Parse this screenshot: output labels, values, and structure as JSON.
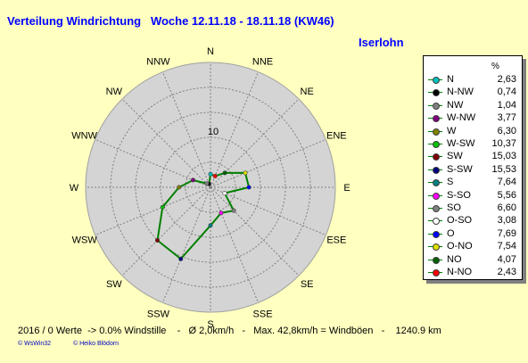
{
  "header": {
    "title": "Verteilung Windrichtung   Woche 12.11.18 - 18.11.18 (KW46)",
    "location": "Iserlohn"
  },
  "chart_data": {
    "type": "radar",
    "directions": [
      "N",
      "NNE",
      "NE",
      "ENE",
      "E",
      "ESE",
      "SE",
      "SSE",
      "S",
      "SSW",
      "SW",
      "WSW",
      "W",
      "WNW",
      "NW",
      "NNW"
    ],
    "ring_label": "10",
    "rmax": 25,
    "ring_step": 5,
    "series": [
      {
        "label": "N",
        "value": 2.63,
        "color": "#00c0c0"
      },
      {
        "label": "N-NW",
        "value": 0.74,
        "color": "#000000"
      },
      {
        "label": "NW",
        "value": 1.04,
        "color": "#808080"
      },
      {
        "label": "W-NW",
        "value": 3.77,
        "color": "#800080"
      },
      {
        "label": "W",
        "value": 6.3,
        "color": "#808000"
      },
      {
        "label": "W-SW",
        "value": 10.37,
        "color": "#00c000"
      },
      {
        "label": "SW",
        "value": 15.03,
        "color": "#800000"
      },
      {
        "label": "S-SW",
        "value": 15.53,
        "color": "#000080"
      },
      {
        "label": "S",
        "value": 7.64,
        "color": "#008080"
      },
      {
        "label": "S-SO",
        "value": 5.56,
        "color": "#ff00ff"
      },
      {
        "label": "SO",
        "value": 6.6,
        "color": "#808080"
      },
      {
        "label": "O-SO",
        "value": 3.08,
        "color": "#ffffff"
      },
      {
        "label": "O",
        "value": 7.69,
        "color": "#0000ff"
      },
      {
        "label": "O-NO",
        "value": 7.54,
        "color": "#e0e000"
      },
      {
        "label": "NO",
        "value": 4.07,
        "color": "#006000"
      },
      {
        "label": "N-NO",
        "value": 2.43,
        "color": "#ff0000"
      }
    ],
    "line_color": "#008000",
    "grid_color": "#808080",
    "area_color": "#d4d4d4"
  },
  "legend": {
    "unit": "%"
  },
  "footer": {
    "stats": "2016 / 0 Werte  -> 0.0% Windstille    -   Ø 2,0km/h   -   Max. 42,8km/h = Windböen   -    1240.9 km",
    "copyright_left": "© WsWin32",
    "copyright_right": "© Heiko Blödorn"
  }
}
